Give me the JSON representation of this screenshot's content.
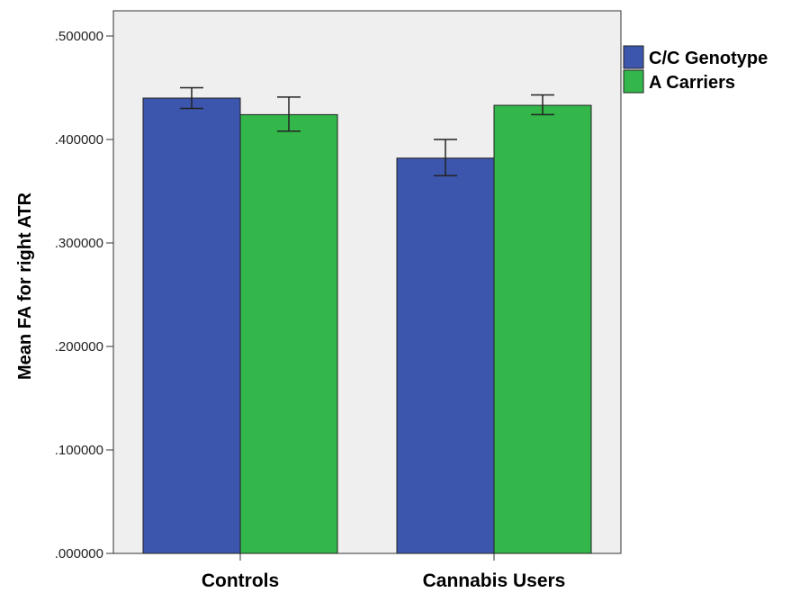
{
  "chart_data": {
    "type": "bar",
    "categories": [
      "Controls",
      "Cannabis Users"
    ],
    "series": [
      {
        "name": "C/C Genotype",
        "color": "#3d56ad",
        "values": [
          0.44,
          0.382
        ],
        "err_low": [
          0.43,
          0.365
        ],
        "err_high": [
          0.45,
          0.4
        ]
      },
      {
        "name": "A Carriers",
        "color": "#33b64a",
        "values": [
          0.424,
          0.433
        ],
        "err_low": [
          0.408,
          0.424
        ],
        "err_high": [
          0.441,
          0.443
        ]
      }
    ],
    "ylabel": "Mean FA for right ATR",
    "xlabel": "",
    "ylim": [
      0,
      0.5
    ],
    "y_ticks": [
      ".000000",
      ".100000",
      ".200000",
      ".300000",
      ".400000",
      ".500000"
    ],
    "y_tick_values": [
      0,
      0.1,
      0.2,
      0.3,
      0.4,
      0.5
    ],
    "plot_background": "#efefef",
    "grid": false,
    "legend_position": "top-right, outside plot"
  }
}
